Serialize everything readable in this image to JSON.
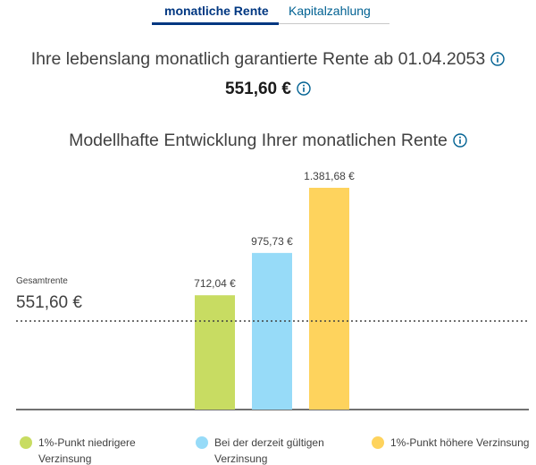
{
  "tabs": {
    "active_label": "monatliche Rente",
    "inactive_label": "Kapitalzahlung"
  },
  "headline": "Ihre lebenslang monatlich garantierte Rente ab 01.04.2053",
  "guaranteed_amount": "551,60 €",
  "subheadline": "Modellhafte Entwicklung Ihrer monatlichen Rente",
  "chart_data": {
    "type": "bar",
    "title": "Modellhafte Entwicklung Ihrer monatlichen Rente",
    "categories": [
      "1%-Punkt niedrigere Verzinsung",
      "Bei der derzeit gültigen Verzinsung",
      "1%-Punkt höhere Verzinsung"
    ],
    "values": [
      712.04,
      975.73,
      1381.68
    ],
    "value_labels": [
      "712,04 €",
      "975,73 €",
      "1.381,68 €"
    ],
    "colors": [
      "#c8dc62",
      "#97dbf8",
      "#fed35d"
    ],
    "reference_line": {
      "label": "Gesamtrente",
      "value": 551.6,
      "value_label": "551,60 €",
      "style": "dotted"
    },
    "ylim": [
      0,
      1500
    ],
    "xlabel": "",
    "ylabel": "",
    "legend_position": "bottom"
  },
  "legend": [
    {
      "line1": "1%-Punkt niedrigere",
      "line2": "Verzinsung",
      "color": "#c8dc62"
    },
    {
      "line1": "Bei der derzeit gültigen",
      "line2": "Verzinsung",
      "color": "#97dbf8"
    },
    {
      "line1": "1%-Punkt höhere Verzinsung",
      "line2": "",
      "color": "#fed35d"
    }
  ],
  "colors": {
    "brand_dark": "#003781",
    "link": "#006192",
    "text": "#414141",
    "info_icon": "#006192"
  }
}
